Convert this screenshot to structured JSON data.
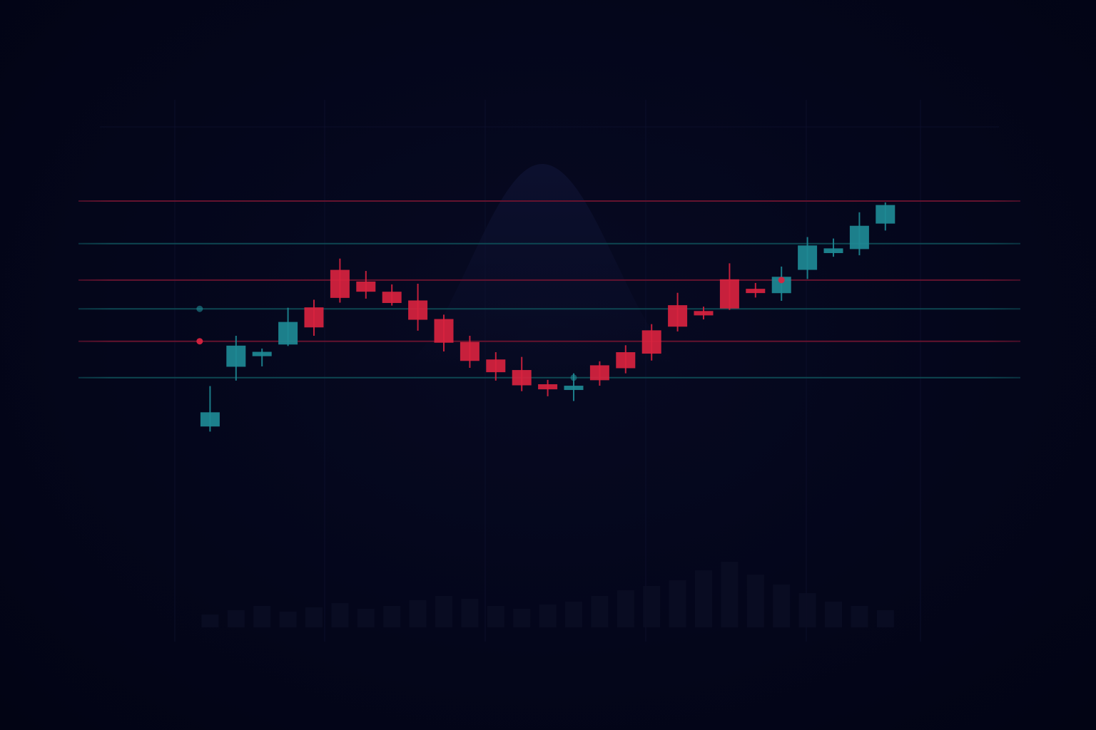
{
  "colors": {
    "background": "#03051a",
    "bullish": "#1f8a95",
    "bearish": "#d8233f",
    "bullish_line": "#0f4a55",
    "bearish_line": "#6a1530",
    "grid": "#0e1230",
    "hump": "#0b0f28",
    "volume": "#0a0d24"
  },
  "chart_data": {
    "type": "candlestick",
    "title": "",
    "xlabel": "",
    "ylabel": "",
    "grid": true,
    "legend": "none",
    "ylim": [
      0,
      100
    ],
    "candles": [
      {
        "x": 1,
        "open": 38.6,
        "close": 42.3,
        "high": 49.6,
        "low": 37.1,
        "direction": "up"
      },
      {
        "x": 2,
        "open": 55.0,
        "close": 60.6,
        "high": 63.4,
        "low": 51.1,
        "direction": "up"
      },
      {
        "x": 3,
        "open": 57.9,
        "close": 58.9,
        "high": 59.9,
        "low": 55.0,
        "direction": "up"
      },
      {
        "x": 4,
        "open": 61.1,
        "close": 67.1,
        "high": 71.1,
        "low": 60.6,
        "direction": "up"
      },
      {
        "x": 5,
        "open": 71.1,
        "close": 65.8,
        "high": 73.3,
        "low": 63.4,
        "direction": "down"
      },
      {
        "x": 6,
        "open": 81.4,
        "close": 73.9,
        "high": 84.6,
        "low": 72.5,
        "direction": "down"
      },
      {
        "x": 7,
        "open": 78.2,
        "close": 75.6,
        "high": 81.2,
        "low": 73.6,
        "direction": "down"
      },
      {
        "x": 8,
        "open": 75.4,
        "close": 72.5,
        "high": 77.5,
        "low": 71.7,
        "direction": "down"
      },
      {
        "x": 9,
        "open": 73.0,
        "close": 67.9,
        "high": 77.7,
        "low": 64.8,
        "direction": "down"
      },
      {
        "x": 10,
        "open": 67.9,
        "close": 61.6,
        "high": 69.2,
        "low": 59.1,
        "direction": "down"
      },
      {
        "x": 11,
        "open": 61.6,
        "close": 56.6,
        "high": 63.4,
        "low": 54.6,
        "direction": "down"
      },
      {
        "x": 12,
        "open": 56.8,
        "close": 53.5,
        "high": 58.9,
        "low": 51.1,
        "direction": "down"
      },
      {
        "x": 13,
        "open": 53.9,
        "close": 49.9,
        "high": 57.6,
        "low": 48.2,
        "direction": "down"
      },
      {
        "x": 14,
        "open": 50.0,
        "close": 48.8,
        "high": 51.3,
        "low": 46.8,
        "direction": "down"
      },
      {
        "x": 15,
        "open": 48.7,
        "close": 49.6,
        "high": 53.1,
        "low": 45.5,
        "direction": "up"
      },
      {
        "x": 16,
        "open": 55.2,
        "close": 51.3,
        "high": 56.4,
        "low": 49.7,
        "direction": "down"
      },
      {
        "x": 17,
        "open": 58.8,
        "close": 54.6,
        "high": 60.8,
        "low": 53.1,
        "direction": "down"
      },
      {
        "x": 18,
        "open": 64.8,
        "close": 58.6,
        "high": 66.6,
        "low": 56.6,
        "direction": "down"
      },
      {
        "x": 19,
        "open": 71.7,
        "close": 66.0,
        "high": 75.2,
        "low": 64.6,
        "direction": "down"
      },
      {
        "x": 20,
        "open": 70.1,
        "close": 69.1,
        "high": 71.4,
        "low": 67.9,
        "direction": "down"
      },
      {
        "x": 21,
        "open": 78.8,
        "close": 71.0,
        "high": 83.3,
        "low": 70.5,
        "direction": "down"
      },
      {
        "x": 22,
        "open": 76.2,
        "close": 75.6,
        "high": 77.9,
        "low": 73.9,
        "direction": "down"
      },
      {
        "x": 23,
        "open": 75.2,
        "close": 79.5,
        "high": 82.4,
        "low": 73.0,
        "direction": "up"
      },
      {
        "x": 24,
        "open": 81.6,
        "close": 88.1,
        "high": 90.5,
        "low": 79.0,
        "direction": "up"
      },
      {
        "x": 25,
        "open": 86.2,
        "close": 87.3,
        "high": 90.1,
        "low": 85.1,
        "direction": "up"
      },
      {
        "x": 26,
        "open": 87.3,
        "close": 93.5,
        "high": 97.3,
        "low": 85.5,
        "direction": "up"
      },
      {
        "x": 27,
        "open": 94.3,
        "close": 99.2,
        "high": 100.0,
        "low": 92.3,
        "direction": "up"
      }
    ],
    "horizontal_lines": [
      {
        "y": 100.4,
        "kind": "bearish"
      },
      {
        "y": 88.7,
        "kind": "bullish"
      },
      {
        "y": 78.7,
        "kind": "bearish"
      },
      {
        "y": 70.8,
        "kind": "bullish"
      },
      {
        "y": 61.9,
        "kind": "bearish"
      },
      {
        "y": 51.9,
        "kind": "bullish"
      }
    ],
    "markers": [
      {
        "x": 0.6,
        "y": 70.8,
        "kind": "bullish"
      },
      {
        "x": 0.6,
        "y": 61.9,
        "kind": "bearish"
      },
      {
        "x": 15.0,
        "y": 51.9,
        "kind": "bullish"
      },
      {
        "x": 23.0,
        "y": 78.7,
        "kind": "bearish"
      }
    ]
  }
}
